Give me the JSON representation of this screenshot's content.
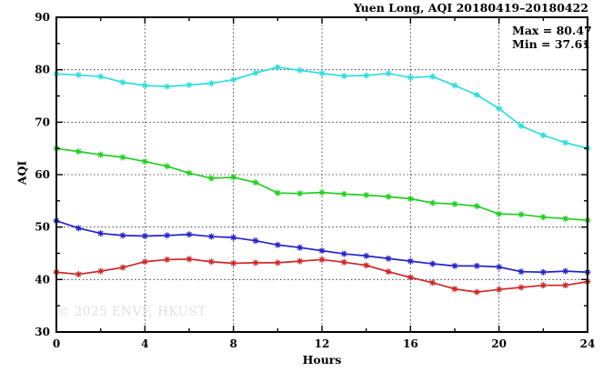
{
  "header": {
    "title": "Yuen Long, AQI 20180419–20180422"
  },
  "annotations": {
    "max": "Max = 80.47",
    "min": "Min = 37.61"
  },
  "watermark": "© 2025 ENVF, HKUST",
  "axes": {
    "xlabel": "Hours",
    "ylabel": "AQI"
  },
  "chart_data": {
    "type": "line",
    "title": "Yuen Long, AQI 20180419–20180422",
    "xlabel": "Hours",
    "ylabel": "AQI",
    "xlim": [
      0,
      24
    ],
    "ylim": [
      30,
      90
    ],
    "x_major_ticks": [
      0,
      4,
      8,
      12,
      16,
      20,
      24
    ],
    "x_minor_ticks": [
      2,
      6,
      10,
      14,
      18,
      22
    ],
    "y_major_ticks": [
      30,
      40,
      50,
      60,
      70,
      80,
      90
    ],
    "y_minor_ticks": [
      35,
      45,
      55,
      65,
      75,
      85
    ],
    "grid": "dotted-at-major-ticks",
    "legend": "none",
    "marker": "asterisk",
    "max_value": 80.47,
    "min_value": 37.61,
    "x": [
      0,
      1,
      2,
      3,
      4,
      5,
      6,
      7,
      8,
      9,
      10,
      11,
      12,
      13,
      14,
      15,
      16,
      17,
      18,
      19,
      20,
      21,
      22,
      23,
      24
    ],
    "series": [
      {
        "name": "series-cyan",
        "color": "#2edede",
        "values": [
          79.2,
          79.0,
          78.7,
          77.6,
          77.0,
          76.8,
          77.1,
          77.4,
          78.1,
          79.4,
          80.47,
          79.9,
          79.3,
          78.8,
          78.9,
          79.3,
          78.5,
          78.7,
          77.0,
          75.2,
          72.6,
          69.3,
          67.5,
          66.1,
          65.0
        ]
      },
      {
        "name": "series-green",
        "color": "#21cf21",
        "values": [
          65.0,
          64.4,
          63.8,
          63.3,
          62.5,
          61.6,
          60.3,
          59.3,
          59.5,
          58.5,
          56.5,
          56.4,
          56.6,
          56.3,
          56.1,
          55.8,
          55.4,
          54.6,
          54.4,
          54.0,
          52.5,
          52.4,
          51.9,
          51.6,
          51.3
        ]
      },
      {
        "name": "series-blue",
        "color": "#2323cb",
        "values": [
          51.2,
          49.8,
          48.8,
          48.4,
          48.3,
          48.4,
          48.6,
          48.2,
          48.0,
          47.4,
          46.6,
          46.1,
          45.5,
          44.9,
          44.5,
          44.0,
          43.5,
          43.0,
          42.6,
          42.6,
          42.4,
          41.5,
          41.4,
          41.6,
          41.4
        ]
      },
      {
        "name": "series-red",
        "color": "#cf2727",
        "values": [
          41.4,
          41.0,
          41.6,
          42.3,
          43.4,
          43.8,
          43.9,
          43.4,
          43.1,
          43.2,
          43.2,
          43.5,
          43.8,
          43.3,
          42.7,
          41.5,
          40.4,
          39.4,
          38.2,
          37.61,
          38.1,
          38.5,
          38.9,
          38.9,
          39.6
        ]
      }
    ]
  }
}
